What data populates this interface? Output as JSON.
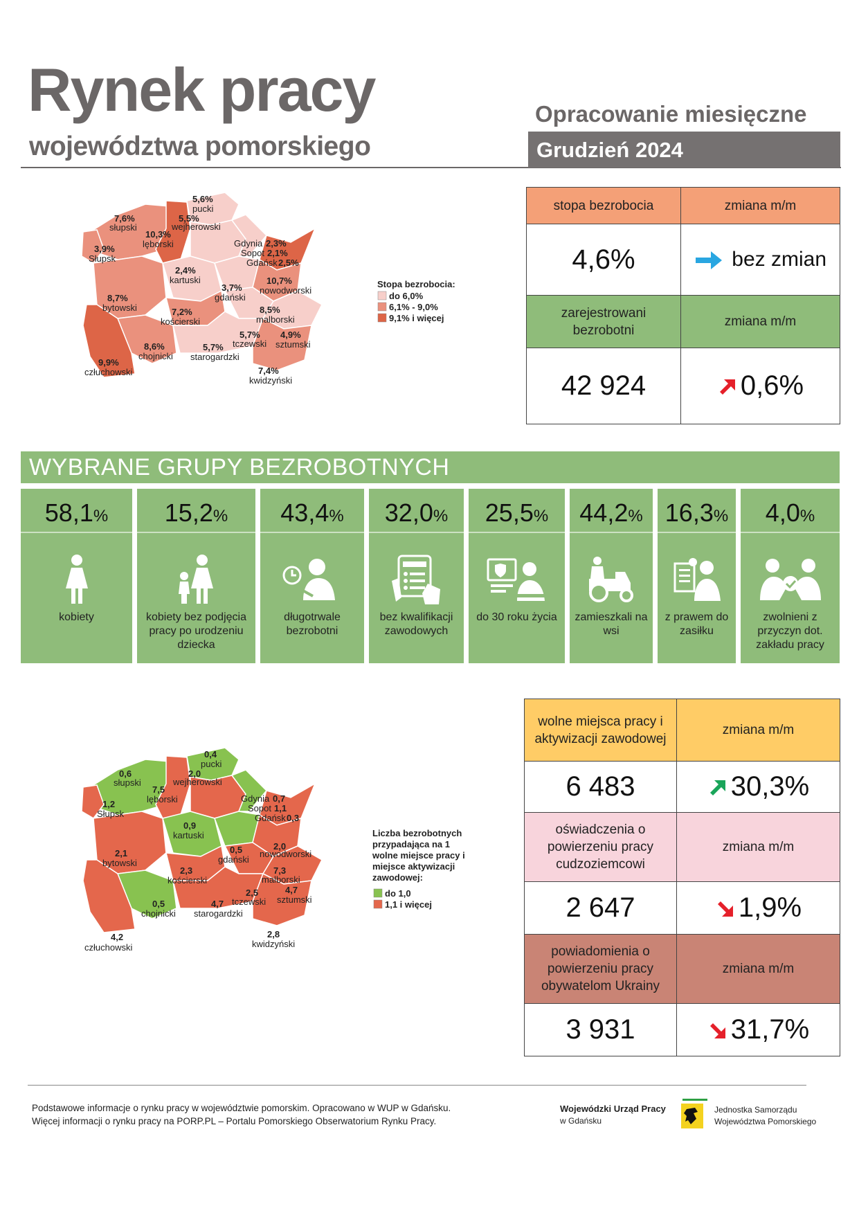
{
  "header": {
    "title": "Rynek pracy",
    "subtitle": "województwa pomorskiego",
    "report_type": "Opracowanie miesięczne",
    "period": "Grudzień 2024"
  },
  "unemployment": {
    "rate_label": "stopa bezrobocia",
    "change_label": "zmiana m/m",
    "rate_value": "4,6%",
    "rate_change": "bez zmian",
    "rate_change_icon": "arrow-right-icon",
    "registered_label": "zarejestrowani bezrobotni",
    "registered_change_label": "zmiana m/m",
    "registered_value": "42 924",
    "registered_change": "0,6%",
    "registered_change_icon": "arrow-up-right-red-icon"
  },
  "map1": {
    "legend_title": "Stopa bezrobocia:",
    "legend": [
      "do 6,0%",
      "6,1% - 9,0%",
      "9,1% i więcej"
    ],
    "colors": [
      "#f7cfca",
      "#ea917d",
      "#dd6547"
    ],
    "regions": [
      {
        "name": "pucki",
        "value": "5,6%"
      },
      {
        "name": "słupski",
        "value": "7,6%"
      },
      {
        "name": "wejherowski",
        "value": "5,5%"
      },
      {
        "name": "lęborski",
        "value": "10,3%"
      },
      {
        "name": "Słupsk",
        "value": "3,9%"
      },
      {
        "name": "Gdynia",
        "value": "2,3%"
      },
      {
        "name": "Sopot",
        "value": "2,1%"
      },
      {
        "name": "Gdańsk",
        "value": "2,5%"
      },
      {
        "name": "kartuski",
        "value": "2,4%"
      },
      {
        "name": "nowodworski",
        "value": "10,7%"
      },
      {
        "name": "bytowski",
        "value": "8,7%"
      },
      {
        "name": "gdański",
        "value": "3,7%"
      },
      {
        "name": "kościerski",
        "value": "7,2%"
      },
      {
        "name": "malborski",
        "value": "8,5%"
      },
      {
        "name": "tczewski",
        "value": "5,7%"
      },
      {
        "name": "sztumski",
        "value": "4,9%"
      },
      {
        "name": "chojnicki",
        "value": "8,6%"
      },
      {
        "name": "starogardzki",
        "value": "5,7%"
      },
      {
        "name": "człuchowski",
        "value": "9,9%"
      },
      {
        "name": "kwidzyński",
        "value": "7,4%"
      }
    ]
  },
  "groups": {
    "title": "WYBRANE GRUPY BEZROBOTNYCH",
    "items": [
      {
        "value": "58,1",
        "unit": "%",
        "label": "kobiety",
        "icon": "woman-icon"
      },
      {
        "value": "15,2",
        "unit": "%",
        "label": "kobiety bez podjęcia pracy po urodzeniu dziecka",
        "icon": "woman-child-icon"
      },
      {
        "value": "43,4",
        "unit": "%",
        "label": "długotrwale bezrobotni",
        "icon": "clock-person-icon"
      },
      {
        "value": "32,0",
        "unit": "%",
        "label": "bez kwalifikacji zawodowych",
        "icon": "tablet-checklist-icon"
      },
      {
        "value": "25,5",
        "unit": "%",
        "label": "do 30 roku życia",
        "icon": "young-person-computer-icon"
      },
      {
        "value": "44,2",
        "unit": "%",
        "label": "zamieszkali na wsi",
        "icon": "tractor-icon"
      },
      {
        "value": "16,3",
        "unit": "%",
        "label": "z prawem do zasiłku",
        "icon": "benefit-document-icon"
      },
      {
        "value": "4,0",
        "unit": "%",
        "label": "zwolnieni z przyczyn dot. zakładu pracy",
        "icon": "dismissal-icon"
      }
    ]
  },
  "map2": {
    "legend_title": "Liczba bezrobotnych przypadająca na 1 wolne miejsce pracy i miejsce aktywizacji zawodowej:",
    "legend": [
      "do 1,0",
      "1,1 i więcej"
    ],
    "colors": [
      "#88c250",
      "#e4674c"
    ],
    "regions": [
      {
        "name": "pucki",
        "value": "0,4"
      },
      {
        "name": "słupski",
        "value": "0,6"
      },
      {
        "name": "wejherowski",
        "value": "2,0"
      },
      {
        "name": "lęborski",
        "value": "7,5"
      },
      {
        "name": "Słupsk",
        "value": "1,2"
      },
      {
        "name": "Gdynia",
        "value": "0,7"
      },
      {
        "name": "Sopot",
        "value": "1,1"
      },
      {
        "name": "Gdańsk",
        "value": "0,3"
      },
      {
        "name": "kartuski",
        "value": "0,9"
      },
      {
        "name": "nowodworski",
        "value": "2,0"
      },
      {
        "name": "bytowski",
        "value": "2,1"
      },
      {
        "name": "gdański",
        "value": "0,5"
      },
      {
        "name": "kościerski",
        "value": "2,3"
      },
      {
        "name": "malborski",
        "value": "7,3"
      },
      {
        "name": "tczewski",
        "value": "2,5"
      },
      {
        "name": "sztumski",
        "value": "4,7"
      },
      {
        "name": "chojnicki",
        "value": "0,5"
      },
      {
        "name": "starogardzki",
        "value": "4,7"
      },
      {
        "name": "człuchowski",
        "value": "4,2"
      },
      {
        "name": "kwidzyński",
        "value": "2,8"
      }
    ]
  },
  "vacancies": {
    "label": "wolne miejsca pracy i aktywizacji zawodowej",
    "change_label": "zmiana m/m",
    "value": "6 483",
    "change": "30,3%",
    "change_icon": "arrow-up-right-green-icon",
    "color": "#ffcc66"
  },
  "declarations": {
    "label": "oświadczenia o powierzeniu pracy cudzoziemcowi",
    "change_label": "zmiana m/m",
    "value": "2 647",
    "change": "1,9%",
    "change_icon": "arrow-down-right-red-icon",
    "color": "#f8d4dc"
  },
  "notifications": {
    "label": "powiadomienia o powierzeniu pracy obywatelom Ukrainy",
    "change_label": "zmiana m/m",
    "value": "3 931",
    "change": "31,7%",
    "change_icon": "arrow-down-right-red-icon",
    "color": "#c98475"
  },
  "footer": {
    "line1": "Podstawowe informacje o rynku pracy w województwie pomorskim. Opracowano w WUP w Gdańsku.",
    "line2": "Więcej informacji o rynku pracy na PORP.PL – Portalu Pomorskiego Obserwatorium Rynku Pracy.",
    "org_name": "Wojewódzki Urząd Pracy",
    "org_city": "w Gdańsku",
    "jst_line1": "Jednostka Samorządu",
    "jst_line2": "Województwa Pomorskiego"
  }
}
